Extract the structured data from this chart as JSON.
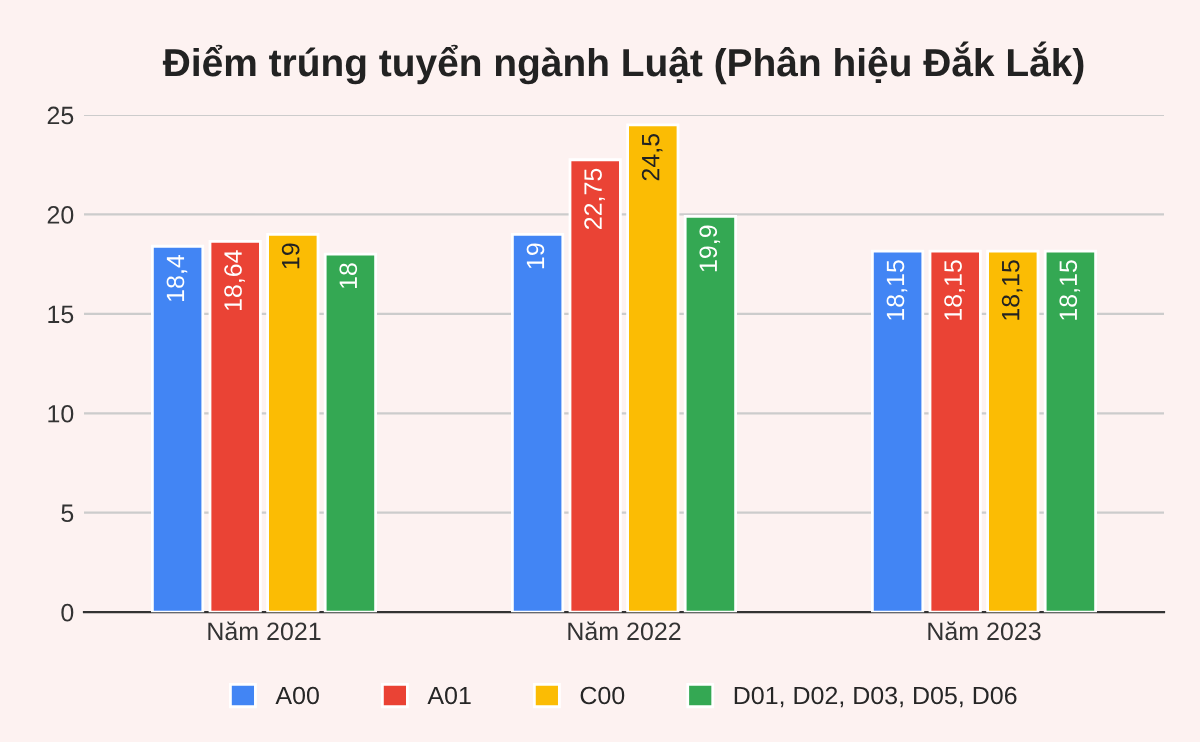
{
  "chart_data": {
    "type": "bar",
    "title": "Điểm trúng tuyển ngành Luật (Phân hiệu Đắk Lắk)",
    "categories": [
      "Năm 2021",
      "Năm 2022",
      "Năm 2023"
    ],
    "series": [
      {
        "name": "A00",
        "color": "#4285f4",
        "values": [
          18.4,
          19,
          18.15
        ],
        "value_labels": [
          "18,4",
          "19",
          "18,15"
        ]
      },
      {
        "name": "A01",
        "color": "#ea4335",
        "values": [
          18.64,
          22.75,
          18.15
        ],
        "value_labels": [
          "18,64",
          "22,75",
          "18,15"
        ]
      },
      {
        "name": "C00",
        "color": "#fbbc04",
        "values": [
          19,
          24.5,
          18.15
        ],
        "value_labels": [
          "19",
          "24,5",
          "18,15"
        ]
      },
      {
        "name": "D01, D02, D03, D05, D06",
        "color": "#34a853",
        "values": [
          18,
          19.9,
          18.15
        ],
        "value_labels": [
          "18",
          "19,9",
          "18,15"
        ]
      }
    ],
    "ylim": [
      0,
      25
    ],
    "yticks": [
      0,
      5,
      10,
      15,
      20,
      25
    ],
    "grid": "y",
    "legend": "bottom"
  }
}
